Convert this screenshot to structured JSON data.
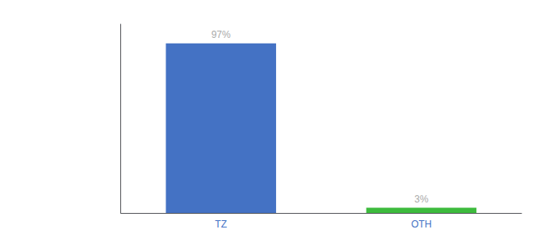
{
  "chart_data": {
    "type": "bar",
    "categories": [
      "TZ",
      "OTH"
    ],
    "values": [
      97,
      3
    ],
    "value_labels": [
      "97%",
      "3%"
    ],
    "colors": [
      "#4472c4",
      "#3dbb3d"
    ],
    "ylim": [
      0,
      108
    ],
    "grid": false,
    "tick_labels": "x",
    "data_labels": true
  }
}
